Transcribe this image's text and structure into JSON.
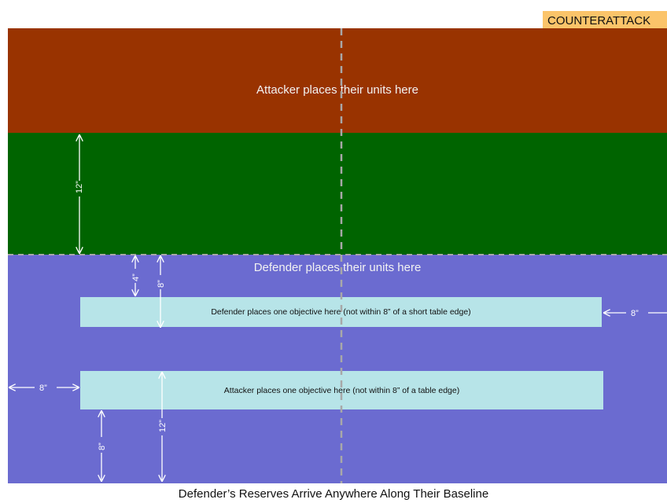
{
  "badge": "COUNTERATTACK",
  "zones": {
    "attacker_deploy": "Attacker places their units here",
    "defender_deploy": "Defender  places their units here"
  },
  "objectives": {
    "defender": "Defender places one objective here (not within 8” of a short table edge)",
    "attacker": "Attacker places one objective here (not within 8” of a table edge)"
  },
  "measurements": {
    "no_mans_land": "12”",
    "defender_gap": "4”",
    "defender_objective_depth": "8”",
    "defender_objective_side": "8”",
    "attacker_objective_side": "8”",
    "attacker_objective_depth": "12”",
    "attacker_objective_bottom": "8”"
  },
  "footer": "Defender’s Reserves Arrive Anywhere Along Their Baseline",
  "colors": {
    "attacker_zone": "#993300",
    "no_mans_land": "#006400",
    "defender_zone": "#6b6bd0",
    "objective_zone": "#b7e4e8",
    "badge": "#fbc46a"
  }
}
